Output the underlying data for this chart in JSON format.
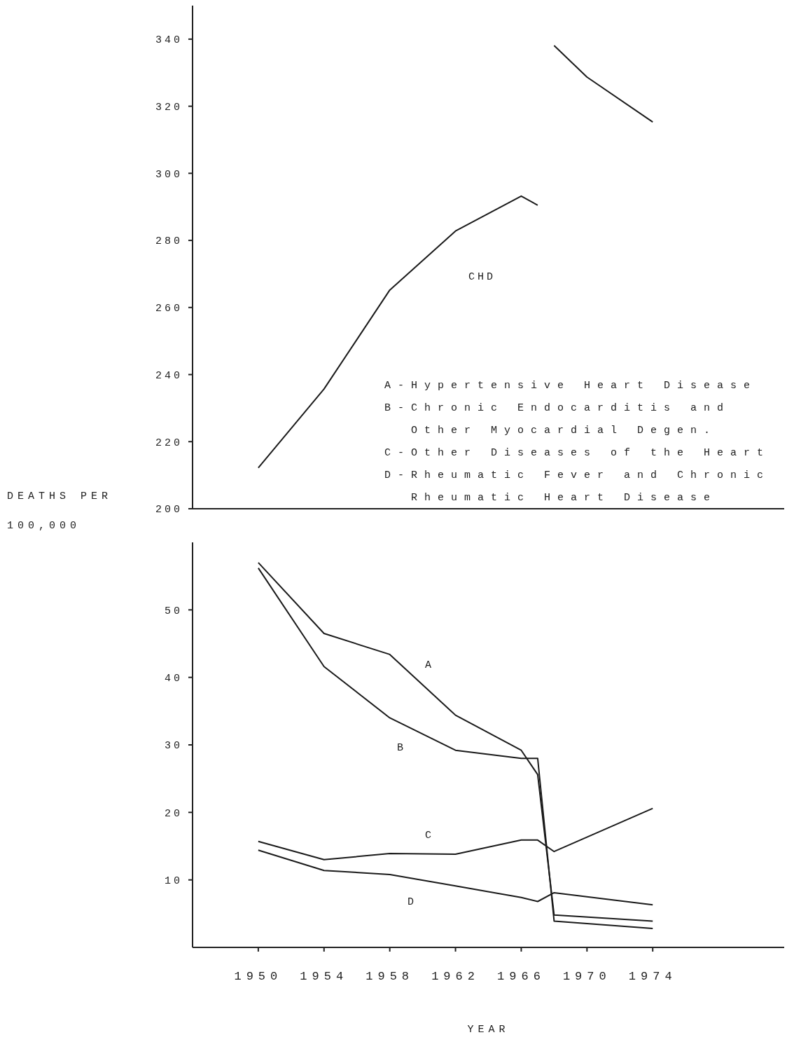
{
  "chart_data": [
    {
      "type": "line",
      "xlim": [
        1946,
        1982
      ],
      "ylim": [
        200,
        350
      ],
      "yticks": [
        200,
        220,
        240,
        260,
        280,
        300,
        320,
        340
      ],
      "tick_labels": "y",
      "line_style": "solid",
      "series": [
        {
          "name": "CHD",
          "color": "#1a1a1a",
          "x": [
            1950,
            1954,
            1958,
            1962,
            1966,
            1967
          ],
          "values": [
            212.2,
            235.7,
            265.2,
            282.8,
            293.2,
            290.5
          ]
        },
        {
          "color": "#1a1a1a",
          "x": [
            1968,
            1970,
            1974
          ],
          "values": [
            338.1,
            328.7,
            315.3
          ]
        }
      ],
      "annotations": [
        "A-Hypertensive Heart Disease",
        "B-Chronic Endocarditis and Other Myocardial Degen.",
        "C-Other Diseases of the Heart",
        "D-Rheumatic Fever and Chronic Rheumatic Heart Disease"
      ]
    },
    {
      "type": "line",
      "xlim": [
        1946,
        1982
      ],
      "ylim": [
        0,
        60
      ],
      "yticks": [
        10,
        20,
        30,
        40,
        50
      ],
      "xticks": [
        1950,
        1954,
        1958,
        1962,
        1966,
        1970,
        1974
      ],
      "xlabel": "YEAR",
      "ylabel": "DEATHS PER 100,000",
      "line_style": "solid",
      "series": [
        {
          "name": "A",
          "color": "#1a1a1a",
          "x": [
            1950,
            1954,
            1958,
            1962,
            1966,
            1967,
            1968,
            1974
          ],
          "values": [
            57,
            46.5,
            43.4,
            34.4,
            29.2,
            25.6,
            4.8,
            3.9
          ]
        },
        {
          "name": "B",
          "color": "#1a1a1a",
          "x": [
            1950,
            1954,
            1958,
            1962,
            1966,
            1967,
            1968,
            1974
          ],
          "values": [
            56.2,
            41.6,
            34,
            29.2,
            28,
            28,
            3.9,
            2.8
          ]
        },
        {
          "name": "C",
          "color": "#1a1a1a",
          "x": [
            1950,
            1954,
            1958,
            1962,
            1966,
            1967,
            1968,
            1974
          ],
          "values": [
            15.7,
            13,
            13.9,
            13.8,
            15.9,
            15.9,
            14.2,
            20.6
          ]
        },
        {
          "name": "D",
          "color": "#1a1a1a",
          "x": [
            1950,
            1954,
            1958,
            1962,
            1966,
            1967,
            1968,
            1974
          ],
          "values": [
            14.4,
            11.4,
            10.8,
            9.1,
            7.4,
            6.8,
            8.1,
            6.3
          ]
        }
      ]
    }
  ]
}
